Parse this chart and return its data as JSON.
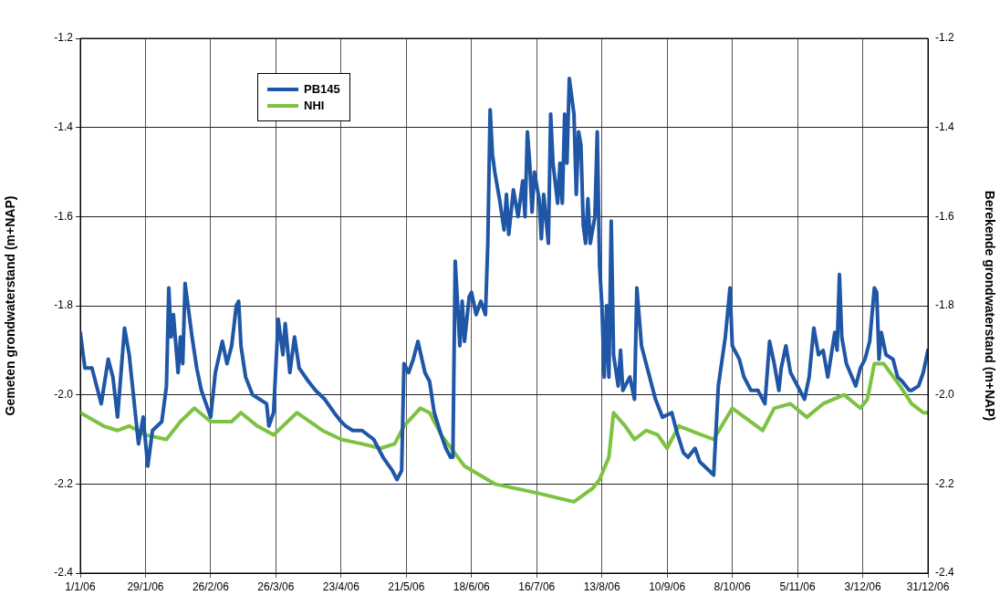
{
  "chart_data": {
    "type": "line",
    "ylabel": "Gemeten grondwaterstand (m+NAP)",
    "y2label": "Berekende grondwaterstand (m+NAP)",
    "xlim": [
      "2006-01-01",
      "2006-12-31"
    ],
    "xticks": [
      {
        "value": "2006-01-01",
        "label": "1/1/06"
      },
      {
        "value": "2006-01-29",
        "label": "29/1/06"
      },
      {
        "value": "2006-02-26",
        "label": "26/2/06"
      },
      {
        "value": "2006-03-26",
        "label": "26/3/06"
      },
      {
        "value": "2006-04-23",
        "label": "23/4/06"
      },
      {
        "value": "2006-05-21",
        "label": "21/5/06"
      },
      {
        "value": "2006-06-18",
        "label": "18/6/06"
      },
      {
        "value": "2006-07-16",
        "label": "16/7/06"
      },
      {
        "value": "2006-08-13",
        "label": "13/8/06"
      },
      {
        "value": "2006-09-10",
        "label": "10/9/06"
      },
      {
        "value": "2006-10-08",
        "label": "8/10/06"
      },
      {
        "value": "2006-11-05",
        "label": "5/11/06"
      },
      {
        "value": "2006-12-03",
        "label": "3/12/06"
      },
      {
        "value": "2006-12-31",
        "label": "31/12/06"
      }
    ],
    "ylim": [
      -2.4,
      -1.2
    ],
    "yticks": [
      -2.4,
      -2.2,
      {
        "value": -2,
        "label": "-2.0"
      },
      -1.8,
      -1.6,
      -1.4,
      -1.2
    ],
    "y2lim": [
      -2.4,
      -1.2
    ],
    "y2ticks": [
      -2.4,
      -2.2,
      {
        "value": -2,
        "label": "-2.0"
      },
      -1.8,
      -1.6,
      -1.4,
      -1.2
    ],
    "grid": true,
    "legend": "top left",
    "marker": "none",
    "line_style": "solid",
    "series": [
      {
        "name": "PB145",
        "color": "#1f56a6",
        "x": [
          "2006-01-01",
          "2006-01-03",
          "2006-01-06",
          "2006-01-10",
          "2006-01-13",
          "2006-01-15",
          "2006-01-17",
          "2006-01-20",
          "2006-01-22",
          "2006-01-23",
          "2006-01-26",
          "2006-01-28",
          "2006-01-30",
          "2006-02-01",
          "2006-02-05",
          "2006-02-07",
          "2006-02-08",
          "2006-02-09",
          "2006-02-10",
          "2006-02-12",
          "2006-02-13",
          "2006-02-14",
          "2006-02-15",
          "2006-02-18",
          "2006-02-20",
          "2006-02-22",
          "2006-02-24",
          "2006-02-26",
          "2006-02-28",
          "2006-03-03",
          "2006-03-05",
          "2006-03-07",
          "2006-03-09",
          "2006-03-10",
          "2006-03-11",
          "2006-03-13",
          "2006-03-16",
          "2006-03-19",
          "2006-03-22",
          "2006-03-23",
          "2006-03-25",
          "2006-03-27",
          "2006-03-29",
          "2006-03-30",
          "2006-04-01",
          "2006-04-03",
          "2006-04-05",
          "2006-04-09",
          "2006-04-12",
          "2006-04-16",
          "2006-04-20",
          "2006-04-23",
          "2006-04-25",
          "2006-04-28",
          "2006-05-02",
          "2006-05-07",
          "2006-05-11",
          "2006-05-15",
          "2006-05-17",
          "2006-05-19",
          "2006-05-20",
          "2006-05-22",
          "2006-05-24",
          "2006-05-26",
          "2006-05-29",
          "2006-05-31",
          "2006-06-02",
          "2006-06-05",
          "2006-06-07",
          "2006-06-09",
          "2006-06-10",
          "2006-06-11",
          "2006-06-13",
          "2006-06-14",
          "2006-06-15",
          "2006-06-17",
          "2006-06-18",
          "2006-06-20",
          "2006-06-22",
          "2006-06-24",
          "2006-06-25",
          "2006-06-26",
          "2006-06-27",
          "2006-06-28",
          "2006-06-30",
          "2006-07-02",
          "2006-07-03",
          "2006-07-04",
          "2006-07-06",
          "2006-07-08",
          "2006-07-10",
          "2006-07-11",
          "2006-07-12",
          "2006-07-13",
          "2006-07-14",
          "2006-07-15",
          "2006-07-17",
          "2006-07-18",
          "2006-07-19",
          "2006-07-21",
          "2006-07-22",
          "2006-07-23",
          "2006-07-25",
          "2006-07-26",
          "2006-07-27",
          "2006-07-28",
          "2006-07-29",
          "2006-07-30",
          "2006-08-01",
          "2006-08-02",
          "2006-08-03",
          "2006-08-04",
          "2006-08-05",
          "2006-08-06",
          "2006-08-07",
          "2006-08-08",
          "2006-08-10",
          "2006-08-11",
          "2006-08-12",
          "2006-08-13",
          "2006-08-14",
          "2006-08-15",
          "2006-08-16",
          "2006-08-17",
          "2006-08-18",
          "2006-08-20",
          "2006-08-21",
          "2006-08-22",
          "2006-08-25",
          "2006-08-27",
          "2006-08-28",
          "2006-08-30",
          "2006-09-01",
          "2006-09-03",
          "2006-09-05",
          "2006-09-08",
          "2006-09-12",
          "2006-09-14",
          "2006-09-17",
          "2006-09-19",
          "2006-09-22",
          "2006-09-24",
          "2006-09-26",
          "2006-09-30",
          "2006-10-02",
          "2006-10-05",
          "2006-10-07",
          "2006-10-08",
          "2006-10-11",
          "2006-10-13",
          "2006-10-16",
          "2006-10-19",
          "2006-10-22",
          "2006-10-24",
          "2006-10-26",
          "2006-10-28",
          "2006-10-29",
          "2006-10-31",
          "2006-11-02",
          "2006-11-08",
          "2006-11-10",
          "2006-11-12",
          "2006-11-14",
          "2006-11-16",
          "2006-11-18",
          "2006-11-21",
          "2006-11-22",
          "2006-11-23",
          "2006-11-24",
          "2006-11-26",
          "2006-11-30",
          "2006-12-02",
          "2006-12-04",
          "2006-12-06",
          "2006-12-08",
          "2006-12-09",
          "2006-12-10",
          "2006-12-11",
          "2006-12-13",
          "2006-12-16",
          "2006-12-18",
          "2006-12-20",
          "2006-12-23",
          "2006-12-24",
          "2006-12-27",
          "2006-12-29",
          "2006-12-31"
        ],
        "values": [
          -1.86,
          -1.94,
          -1.94,
          -2.02,
          -1.92,
          -1.96,
          -2.05,
          -1.85,
          -1.91,
          -1.96,
          -2.11,
          -2.05,
          -2.16,
          -2.08,
          -2.06,
          -1.98,
          -1.76,
          -1.87,
          -1.82,
          -1.95,
          -1.87,
          -1.93,
          -1.75,
          -1.87,
          -1.94,
          -1.99,
          -2.02,
          -2.05,
          -1.95,
          -1.88,
          -1.93,
          -1.89,
          -1.8,
          -1.79,
          -1.89,
          -1.96,
          -2.0,
          -2.01,
          -2.02,
          -2.07,
          -2.04,
          -1.83,
          -1.91,
          -1.84,
          -1.95,
          -1.87,
          -1.94,
          -1.97,
          -1.99,
          -2.01,
          -2.04,
          -2.06,
          -2.07,
          -2.08,
          -2.08,
          -2.1,
          -2.14,
          -2.17,
          -2.19,
          -2.17,
          -1.93,
          -1.95,
          -1.92,
          -1.88,
          -1.95,
          -1.97,
          -2.04,
          -2.09,
          -2.12,
          -2.14,
          -2.14,
          -1.7,
          -1.89,
          -1.79,
          -1.88,
          -1.78,
          -1.77,
          -1.82,
          -1.79,
          -1.82,
          -1.66,
          -1.36,
          -1.46,
          -1.5,
          -1.56,
          -1.63,
          -1.55,
          -1.64,
          -1.54,
          -1.6,
          -1.52,
          -1.6,
          -1.41,
          -1.48,
          -1.59,
          -1.5,
          -1.56,
          -1.65,
          -1.55,
          -1.66,
          -1.37,
          -1.48,
          -1.57,
          -1.48,
          -1.57,
          -1.37,
          -1.48,
          -1.29,
          -1.37,
          -1.55,
          -1.41,
          -1.44,
          -1.62,
          -1.66,
          -1.56,
          -1.66,
          -1.6,
          -1.41,
          -1.71,
          -1.8,
          -1.96,
          -1.8,
          -1.96,
          -1.61,
          -1.91,
          -1.98,
          -1.9,
          -1.99,
          -1.96,
          -2.01,
          -1.76,
          -1.89,
          -1.93,
          -1.97,
          -2.01,
          -2.05,
          -2.04,
          -2.08,
          -2.13,
          -2.14,
          -2.12,
          -2.15,
          -2.16,
          -2.18,
          -1.98,
          -1.87,
          -1.76,
          -1.89,
          -1.92,
          -1.96,
          -1.99,
          -1.99,
          -2.02,
          -1.88,
          -1.93,
          -1.99,
          -1.94,
          -1.89,
          -1.95,
          -2.01,
          -1.96,
          -1.85,
          -1.91,
          -1.9,
          -1.96,
          -1.86,
          -1.9,
          -1.73,
          -1.87,
          -1.93,
          -1.98,
          -1.94,
          -1.92,
          -1.88,
          -1.76,
          -1.77,
          -1.92,
          -1.86,
          -1.91,
          -1.92,
          -1.96,
          -1.97,
          -1.99,
          -1.99,
          -1.98,
          -1.95,
          -1.9
        ]
      },
      {
        "name": "NHI",
        "color": "#7dc242",
        "x": [
          "2006-01-01",
          "2006-01-11",
          "2006-01-17",
          "2006-01-22",
          "2006-01-29",
          "2006-02-07",
          "2006-02-13",
          "2006-02-19",
          "2006-02-26",
          "2006-03-03",
          "2006-03-07",
          "2006-03-11",
          "2006-03-18",
          "2006-03-25",
          "2006-04-04",
          "2006-04-15",
          "2006-04-23",
          "2006-05-02",
          "2006-05-10",
          "2006-05-16",
          "2006-05-20",
          "2006-05-27",
          "2006-05-31",
          "2006-06-05",
          "2006-06-15",
          "2006-06-28",
          "2006-07-16",
          "2006-08-01",
          "2006-08-09",
          "2006-08-12",
          "2006-08-16",
          "2006-08-18",
          "2006-08-23",
          "2006-08-27",
          "2006-09-01",
          "2006-09-06",
          "2006-09-10",
          "2006-09-15",
          "2006-09-30",
          "2006-10-08",
          "2006-10-21",
          "2006-10-26",
          "2006-11-02",
          "2006-11-09",
          "2006-11-16",
          "2006-11-25",
          "2006-12-02",
          "2006-12-05",
          "2006-12-08",
          "2006-12-12",
          "2006-12-19",
          "2006-12-24",
          "2006-12-29",
          "2006-12-31"
        ],
        "values": [
          -2.04,
          -2.07,
          -2.08,
          -2.07,
          -2.09,
          -2.1,
          -2.06,
          -2.03,
          -2.06,
          -2.06,
          -2.06,
          -2.04,
          -2.07,
          -2.09,
          -2.04,
          -2.08,
          -2.1,
          -2.11,
          -2.12,
          -2.11,
          -2.07,
          -2.03,
          -2.04,
          -2.09,
          -2.16,
          -2.2,
          -2.22,
          -2.24,
          -2.21,
          -2.19,
          -2.14,
          -2.04,
          -2.07,
          -2.1,
          -2.08,
          -2.09,
          -2.12,
          -2.07,
          -2.1,
          -2.03,
          -2.08,
          -2.03,
          -2.02,
          -2.05,
          -2.02,
          -2.0,
          -2.03,
          -2.01,
          -1.93,
          -1.93,
          -1.98,
          -2.02,
          -2.04,
          -2.04
        ]
      }
    ]
  }
}
